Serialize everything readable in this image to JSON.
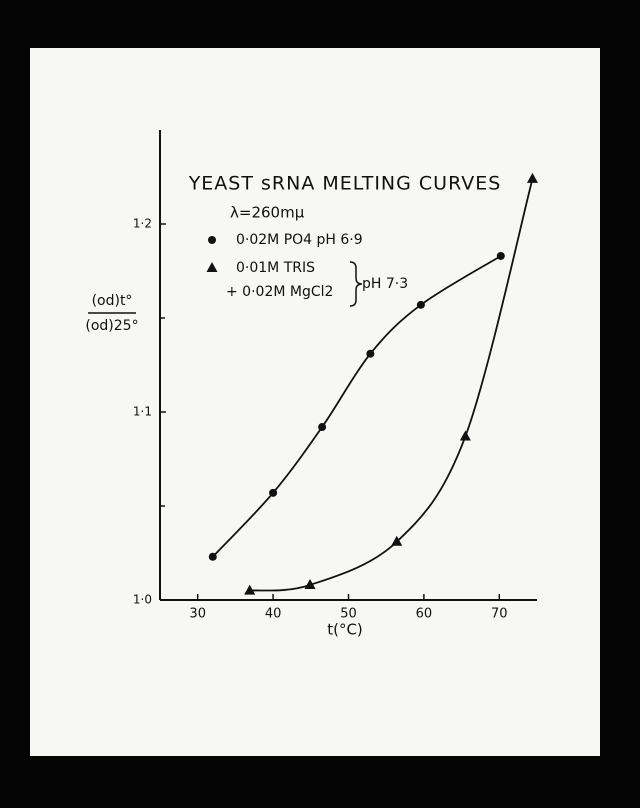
{
  "chart_data": {
    "type": "line",
    "title": "YEAST sRNA MELTING CURVES",
    "subtitle": "λ=260mμ",
    "x_label": "t(°C)",
    "y_label_top": "(od)t°",
    "y_label_bottom": "(od)25°",
    "xlim": [
      25,
      75
    ],
    "xticks": [
      30,
      40,
      50,
      60,
      70
    ],
    "ylim": [
      1.0,
      1.25
    ],
    "yticks": [
      {
        "value": 1.0,
        "label": "1·0"
      },
      {
        "value": 1.1,
        "label": "1·1"
      },
      {
        "value": 1.2,
        "label": "1·2"
      }
    ],
    "yminor": [
      1.05,
      1.15
    ],
    "series": [
      {
        "name": "0·02M PO4 pH 6·9",
        "marker": "circle",
        "color": "#111111",
        "x": [
          32,
          40,
          46.5,
          52.9,
          59.6,
          70.2
        ],
        "values": [
          1.023,
          1.057,
          1.092,
          1.131,
          1.157,
          1.183
        ]
      },
      {
        "name": "0·01M TRIS",
        "marker": "triangle",
        "color": "#111111",
        "x": [
          36.9,
          44.9,
          56.4,
          65.5,
          74.4
        ],
        "values": [
          1.005,
          1.008,
          1.031,
          1.087,
          1.224
        ]
      }
    ],
    "legend_extra": [
      "+ 0·02M MgCl2",
      "pH 7·3"
    ]
  }
}
